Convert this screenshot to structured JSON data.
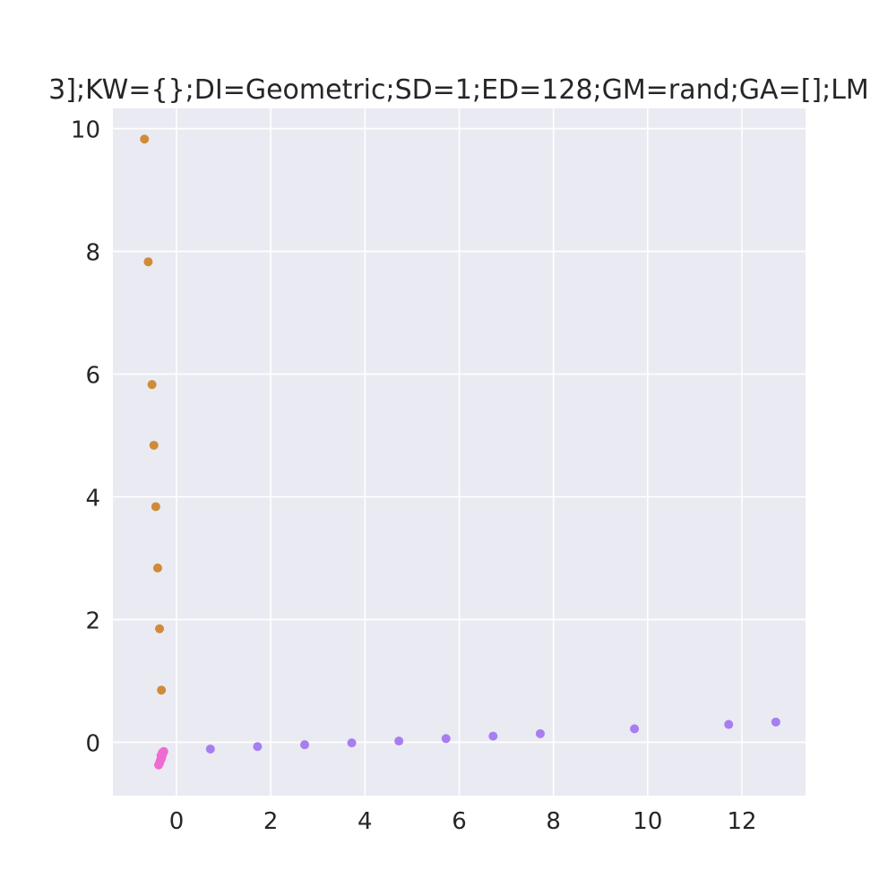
{
  "chart_data": {
    "type": "scatter",
    "title": "3];KW={};DI=Geometric;SD=1;ED=128;GM=rand;GA=[];LM",
    "xlabel": "",
    "ylabel": "",
    "xlim": [
      -1.35,
      13.35
    ],
    "ylim": [
      -0.87,
      10.33
    ],
    "xticks": [
      0,
      2,
      4,
      6,
      8,
      10,
      12
    ],
    "yticks": [
      0,
      2,
      4,
      6,
      8,
      10
    ],
    "grid": true,
    "background": "#eaeaf2",
    "series": [
      {
        "color": "#d08b38",
        "points": [
          [
            -0.68,
            9.83
          ],
          [
            -0.6,
            7.83
          ],
          [
            -0.52,
            5.83
          ],
          [
            -0.48,
            4.84
          ],
          [
            -0.44,
            3.84
          ],
          [
            -0.4,
            2.84
          ],
          [
            -0.36,
            1.85
          ],
          [
            -0.32,
            0.85
          ]
        ]
      },
      {
        "color": "#a77ef0",
        "points": [
          [
            0.72,
            -0.11
          ],
          [
            1.72,
            -0.07
          ],
          [
            2.72,
            -0.04
          ],
          [
            3.72,
            -0.01
          ],
          [
            4.72,
            0.02
          ],
          [
            5.72,
            0.06
          ],
          [
            6.72,
            0.1
          ],
          [
            7.72,
            0.14
          ],
          [
            9.72,
            0.22
          ],
          [
            11.72,
            0.29
          ],
          [
            12.72,
            0.33
          ]
        ]
      },
      {
        "color": "#ef6bd2",
        "points": [
          [
            -0.28,
            -0.16
          ],
          [
            -0.29,
            -0.18
          ],
          [
            -0.3,
            -0.2
          ],
          [
            -0.31,
            -0.23
          ],
          [
            -0.32,
            -0.26
          ],
          [
            -0.33,
            -0.28
          ],
          [
            -0.35,
            -0.31
          ],
          [
            -0.36,
            -0.34
          ],
          [
            -0.38,
            -0.37
          ],
          [
            -0.27,
            -0.15
          ],
          [
            -0.3,
            -0.17
          ],
          [
            -0.33,
            -0.22
          ]
        ]
      }
    ]
  }
}
